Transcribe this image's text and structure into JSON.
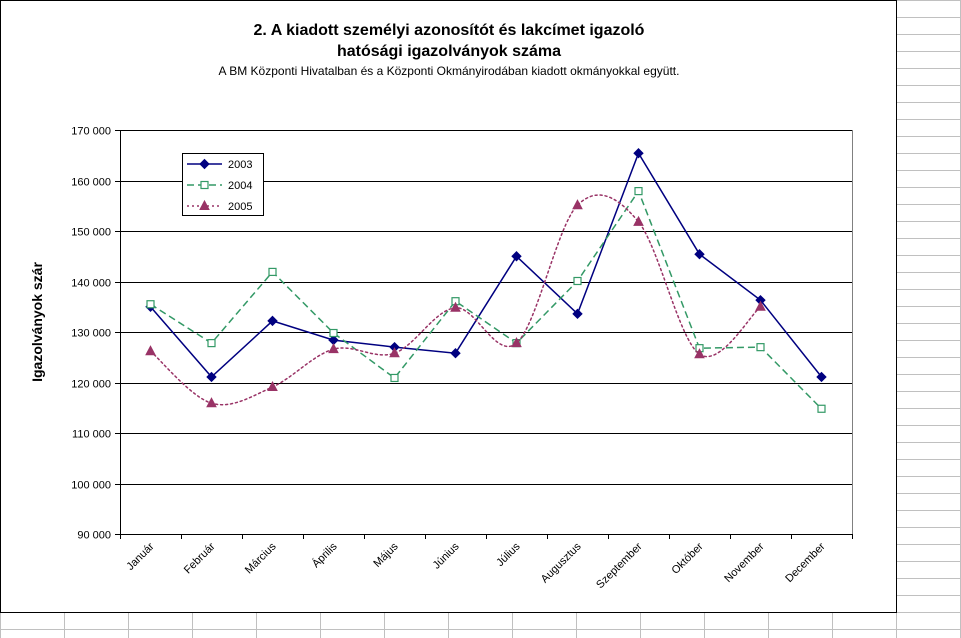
{
  "chart_data": {
    "type": "line",
    "title_lines": [
      "2. A kiadott személyi azonosítót és lakcímet igazoló",
      "hatósági igazolványok száma"
    ],
    "subtitle": "A BM Központi Hivatalban és a Központi Okmányirodában kiadott okmányokkal együtt.",
    "xlabel": "",
    "ylabel": "Igazolványok szár",
    "ylim": [
      90000,
      170000
    ],
    "yticks": [
      90000,
      100000,
      110000,
      120000,
      130000,
      140000,
      150000,
      160000,
      170000
    ],
    "ytick_labels": [
      "90 000",
      "100 000",
      "110 000",
      "120 000",
      "130 000",
      "140 000",
      "150 000",
      "160 000",
      "170 000"
    ],
    "grid": "horizontal major gridlines",
    "legend": "top-left",
    "categories": [
      "Január",
      "Február",
      "Március",
      "Április",
      "Május",
      "Június",
      "Július",
      "Augusztus",
      "Szeptember",
      "Október",
      "November",
      "December"
    ],
    "series": [
      {
        "name": "2003",
        "color": "#000080",
        "marker": "diamond",
        "line": "solid",
        "smooth": false,
        "values": [
          135000,
          121100,
          132200,
          128400,
          127000,
          125800,
          145000,
          133600,
          165400,
          145400,
          136300,
          121100
        ]
      },
      {
        "name": "2004",
        "color": "#339966",
        "marker": "open-square",
        "line": "dashed",
        "smooth": false,
        "values": [
          135500,
          127800,
          141900,
          129800,
          120900,
          136100,
          127800,
          140100,
          157900,
          126800,
          127000,
          114800
        ]
      },
      {
        "name": "2005",
        "color": "#993366",
        "marker": "triangle",
        "line": "dotted",
        "smooth": true,
        "values": [
          126200,
          115900,
          119100,
          126600,
          125800,
          134800,
          127800,
          155100,
          151800,
          125600,
          135000,
          null
        ]
      }
    ]
  }
}
